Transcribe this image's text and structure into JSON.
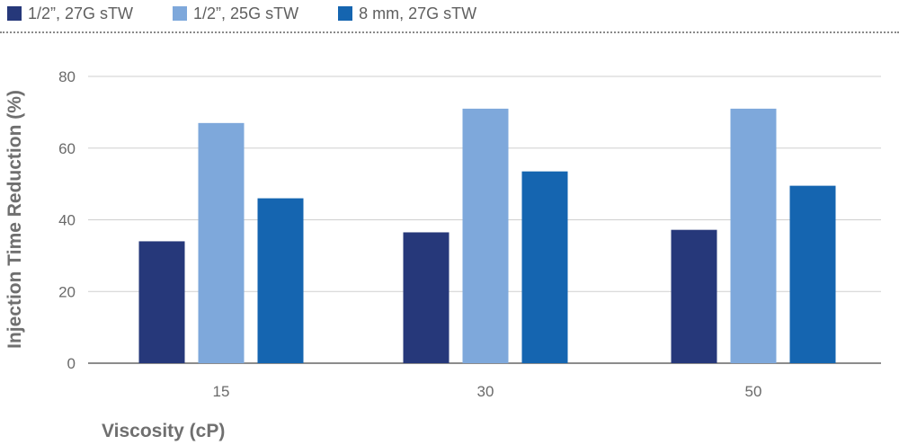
{
  "chart_data": {
    "type": "bar",
    "categories": [
      "15",
      "30",
      "50"
    ],
    "series": [
      {
        "name": "1/2”, 27G sTW",
        "values": [
          34,
          36.5,
          37.2
        ],
        "color": "#26387a"
      },
      {
        "name": "1/2”, 25G sTW",
        "values": [
          67,
          71,
          71
        ],
        "color": "#7ea8db"
      },
      {
        "name": "8 mm, 27G sTW",
        "values": [
          46,
          53.5,
          49.5
        ],
        "color": "#1565b0"
      }
    ],
    "xlabel": "Viscosity (cP)",
    "ylabel": "Injection Time Reduction (%)",
    "ylim": [
      0,
      80
    ],
    "yticks": [
      "0",
      "20",
      "40",
      "60",
      "80"
    ],
    "grid": true,
    "legend_position": "top-left"
  }
}
